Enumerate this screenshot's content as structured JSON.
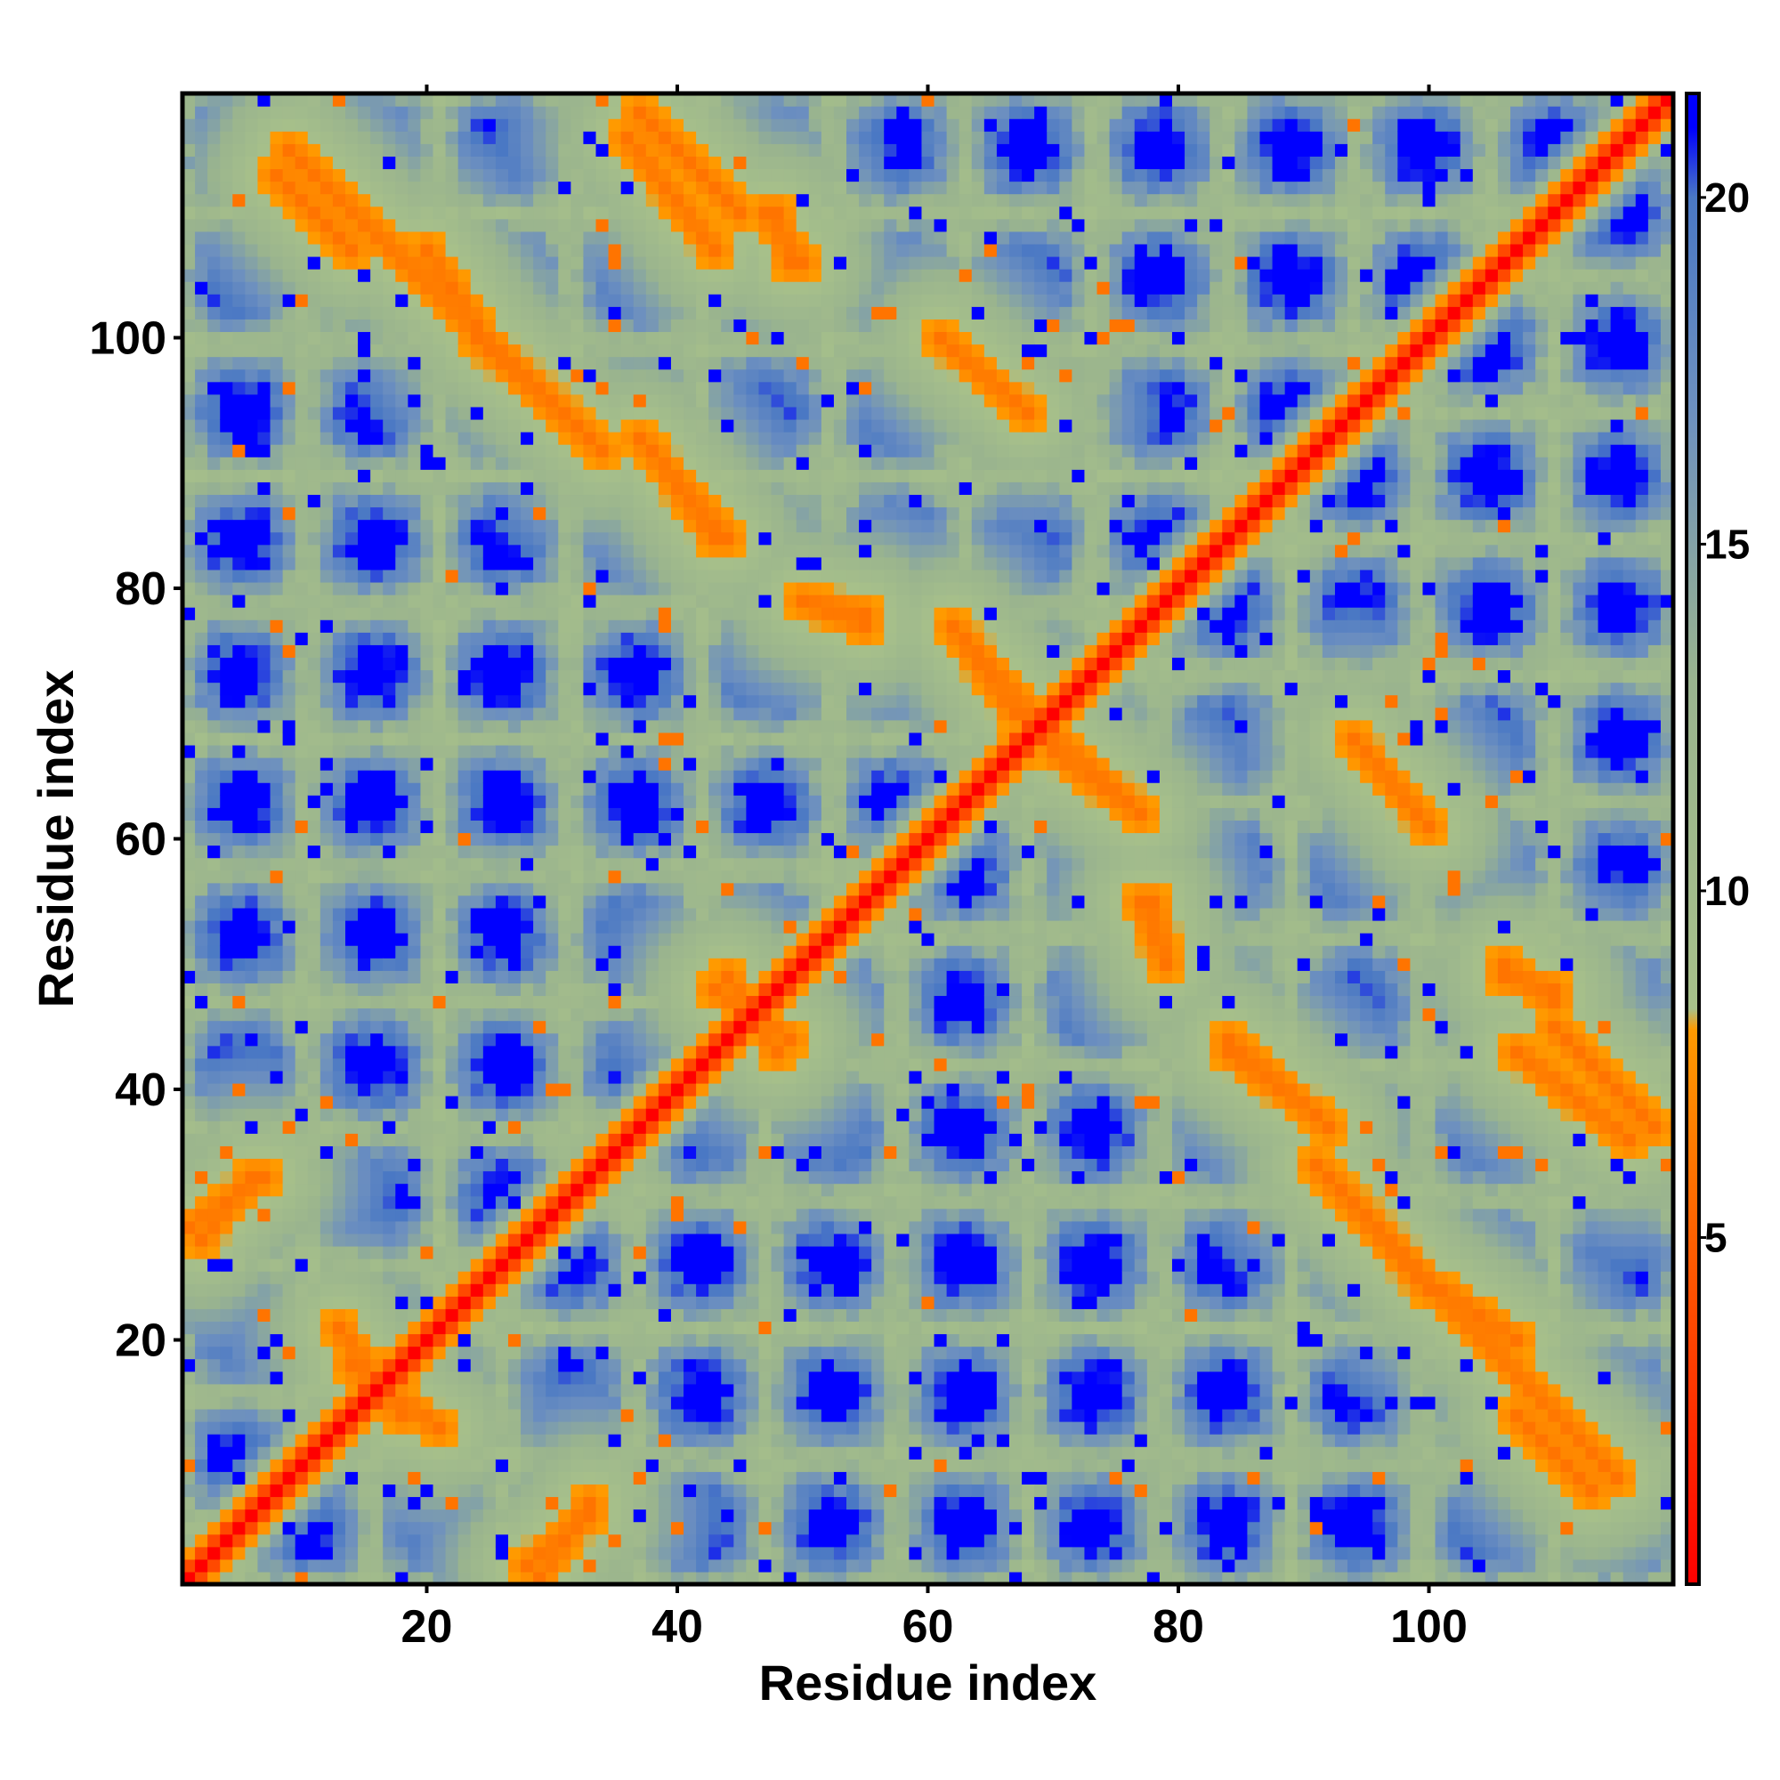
{
  "chart_data": {
    "type": "heatmap",
    "title": "",
    "xlabel": "Residue index",
    "ylabel": "Residue index",
    "xlim": [
      1,
      119
    ],
    "ylim": [
      1,
      119
    ],
    "x_ticks": [
      20,
      40,
      60,
      80,
      100
    ],
    "y_ticks": [
      20,
      40,
      60,
      80,
      100
    ],
    "colorbar": {
      "range": [
        0,
        21.5
      ],
      "ticks": [
        5,
        10,
        15,
        20
      ],
      "stops": [
        {
          "value": 0,
          "color": "#ff0000"
        },
        {
          "value": 8,
          "color": "#ff9a00"
        },
        {
          "value": 8.3,
          "color": "#a7c08a"
        },
        {
          "value": 13,
          "color": "#9ab48e"
        },
        {
          "value": 17,
          "color": "#6c8fc0"
        },
        {
          "value": 20,
          "color": "#4a78c4"
        },
        {
          "value": 21,
          "color": "#0000ff"
        }
      ]
    },
    "matrix_description": "Symmetric residue-residue distance map, values in angstrom, saturating at ~21 (blue).",
    "diagonal_value": 0,
    "contact_segments": [
      {
        "x": [
          9,
          33
        ],
        "y": [
          115,
          92
        ],
        "value": 6
      },
      {
        "x": [
          37,
          45
        ],
        "y": [
          118,
          110
        ],
        "value": 6
      },
      {
        "x": [
          47,
          50
        ],
        "y": [
          110,
          106
        ],
        "value": 6
      },
      {
        "x": [
          37,
          44
        ],
        "y": [
          92,
          84
        ],
        "value": 6
      },
      {
        "x": [
          61,
          68
        ],
        "y": [
          100,
          94
        ],
        "value": 6
      },
      {
        "x": [
          50,
          55
        ],
        "y": [
          79,
          78
        ],
        "value": 6
      },
      {
        "x": [
          62,
          70
        ],
        "y": [
          77,
          68
        ],
        "value": 6
      },
      {
        "x": [
          70,
          77
        ],
        "y": [
          67,
          62
        ],
        "value": 6
      },
      {
        "x": [
          94,
          100
        ],
        "y": [
          68,
          61
        ],
        "value": 6
      },
      {
        "x": [
          77,
          79
        ],
        "y": [
          55,
          50
        ],
        "value": 6
      },
      {
        "x": [
          84,
          91
        ],
        "y": [
          43,
          38
        ],
        "value": 6
      },
      {
        "x": [
          91,
          100
        ],
        "y": [
          34,
          24
        ],
        "value": 6
      },
      {
        "x": [
          101,
          107
        ],
        "y": [
          24,
          20
        ],
        "value": 6
      },
      {
        "x": [
          107,
          113
        ],
        "y": [
          14,
          8
        ],
        "value": 6
      },
      {
        "x": [
          107,
          116
        ],
        "y": [
          43,
          36
        ],
        "value": 6
      },
      {
        "x": [
          106,
          110
        ],
        "y": [
          49,
          48
        ],
        "value": 6
      },
      {
        "x": [
          1,
          7
        ],
        "y": [
          29,
          33
        ],
        "value": 6
      },
      {
        "x": [
          28,
          33
        ],
        "y": [
          2,
          6
        ],
        "value": 6
      },
      {
        "x": [
          44,
          48
        ],
        "y": [
          49,
          43
        ],
        "value": 6
      },
      {
        "x": [
          13,
          18
        ],
        "y": [
          21,
          14
        ],
        "value": 6
      }
    ]
  }
}
